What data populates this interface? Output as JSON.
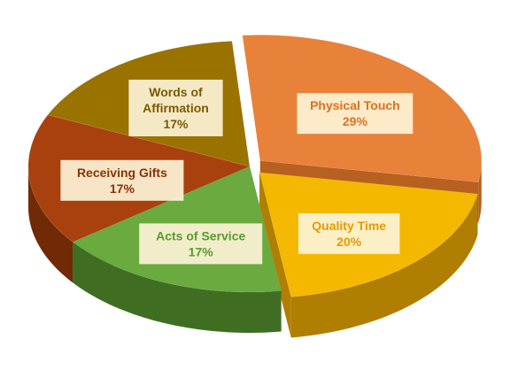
{
  "chart_data": {
    "type": "pie",
    "title": "",
    "slices": [
      {
        "name": "Physical Touch",
        "value": 29,
        "percent_label": "29%",
        "color": "#e8813a",
        "side": "#b8601f",
        "text_color": "#e07020"
      },
      {
        "name": "Quality Time",
        "value": 20,
        "percent_label": "20%",
        "color": "#f5b800",
        "side": "#b07e00",
        "text_color": "#e39b00"
      },
      {
        "name": "Acts of Service",
        "value": 17,
        "percent_label": "17%",
        "color": "#6aaa3e",
        "side": "#3f6e22",
        "text_color": "#5a9a2e"
      },
      {
        "name": "Receiving Gifts",
        "value": 17,
        "percent_label": "17%",
        "color": "#a9410f",
        "side": "#702a06",
        "text_color": "#8a3208"
      },
      {
        "name": "Words of\nAffirmation",
        "value": 17,
        "percent_label": "17%",
        "color": "#9a7200",
        "side": "#684c00",
        "text_color": "#7a5a00"
      }
    ],
    "legend": "none"
  }
}
